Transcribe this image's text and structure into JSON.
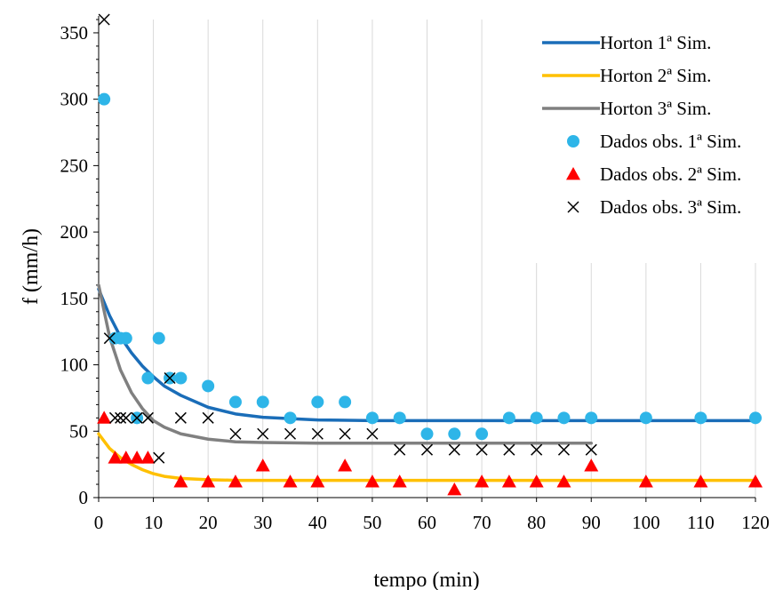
{
  "chart_data": {
    "type": "scatter",
    "xlabel": "tempo (min)",
    "ylabel": "f (mm/h)",
    "xlim": [
      0,
      120
    ],
    "ylim": [
      0,
      360
    ],
    "x_ticks": [
      0,
      10,
      20,
      30,
      40,
      50,
      60,
      70,
      80,
      90,
      100,
      110,
      120
    ],
    "y_ticks": [
      0,
      50,
      100,
      150,
      200,
      250,
      300,
      350
    ],
    "grid": "vertical",
    "legend_position": "top-right",
    "series": [
      {
        "name": "Horton 1ª Sim.",
        "type": "line",
        "color": "#1a6db8",
        "x": [
          0,
          2,
          4,
          6,
          8,
          10,
          12,
          15,
          20,
          25,
          30,
          40,
          50,
          60,
          70,
          80,
          90,
          100,
          110,
          120
        ],
        "y": [
          157,
          137,
          121,
          109,
          99,
          91,
          84,
          77,
          68,
          63,
          60.5,
          58.5,
          58,
          58,
          58,
          58,
          58,
          58,
          58,
          58
        ]
      },
      {
        "name": "Horton 2ª Sim.",
        "type": "line",
        "color": "#ffc000",
        "x": [
          0,
          2,
          4,
          6,
          8,
          10,
          12,
          15,
          20,
          25,
          30,
          40,
          50,
          60,
          70,
          80,
          90,
          100,
          110,
          120
        ],
        "y": [
          48,
          37,
          30,
          25,
          21,
          18,
          16,
          14.5,
          13.5,
          13,
          13,
          13,
          13,
          13,
          13,
          13,
          13,
          13,
          13,
          13
        ]
      },
      {
        "name": "Horton 3ª Sim.",
        "type": "line",
        "color": "#808080",
        "x": [
          0,
          2,
          4,
          6,
          8,
          10,
          12,
          15,
          20,
          25,
          30,
          40,
          50,
          60,
          70,
          80,
          90
        ],
        "y": [
          160,
          121,
          96,
          79,
          67,
          58,
          53,
          48,
          44,
          42,
          41.5,
          41,
          41,
          41,
          41,
          41,
          41
        ]
      },
      {
        "name": "Dados obs. 1ª Sim.",
        "type": "scatter",
        "marker": "circle",
        "color": "#2eb5e8",
        "x": [
          1,
          3,
          4,
          5,
          7,
          9,
          11,
          13,
          15,
          20,
          25,
          30,
          35,
          40,
          45,
          50,
          55,
          60,
          65,
          70,
          75,
          80,
          85,
          90,
          100,
          110,
          120
        ],
        "y": [
          300,
          120,
          120,
          120,
          60,
          90,
          120,
          90,
          90,
          84,
          72,
          72,
          60,
          72,
          72,
          60,
          60,
          48,
          48,
          48,
          60,
          60,
          60,
          60,
          60,
          60,
          60
        ]
      },
      {
        "name": "Dados obs. 2ª Sim.",
        "type": "scatter",
        "marker": "triangle",
        "color": "#ff0000",
        "x": [
          1,
          3,
          5,
          7,
          9,
          15,
          20,
          25,
          30,
          35,
          40,
          45,
          50,
          55,
          65,
          70,
          75,
          80,
          85,
          90,
          100,
          110,
          120
        ],
        "y": [
          60,
          30,
          30,
          30,
          30,
          12,
          12,
          12,
          24,
          12,
          12,
          24,
          12,
          12,
          6,
          12,
          12,
          12,
          12,
          24,
          12,
          12,
          12
        ]
      },
      {
        "name": "Dados obs. 3ª Sim.",
        "type": "scatter",
        "marker": "x",
        "color": "#000000",
        "x": [
          1,
          2,
          3,
          4,
          5,
          7,
          9,
          11,
          13,
          15,
          20,
          25,
          30,
          35,
          40,
          45,
          50,
          55,
          60,
          65,
          70,
          75,
          80,
          85,
          90
        ],
        "y": [
          360,
          120,
          60,
          60,
          60,
          60,
          60,
          30,
          90,
          60,
          60,
          48,
          48,
          48,
          48,
          48,
          48,
          36,
          36,
          36,
          36,
          36,
          36,
          36,
          36
        ]
      }
    ]
  }
}
